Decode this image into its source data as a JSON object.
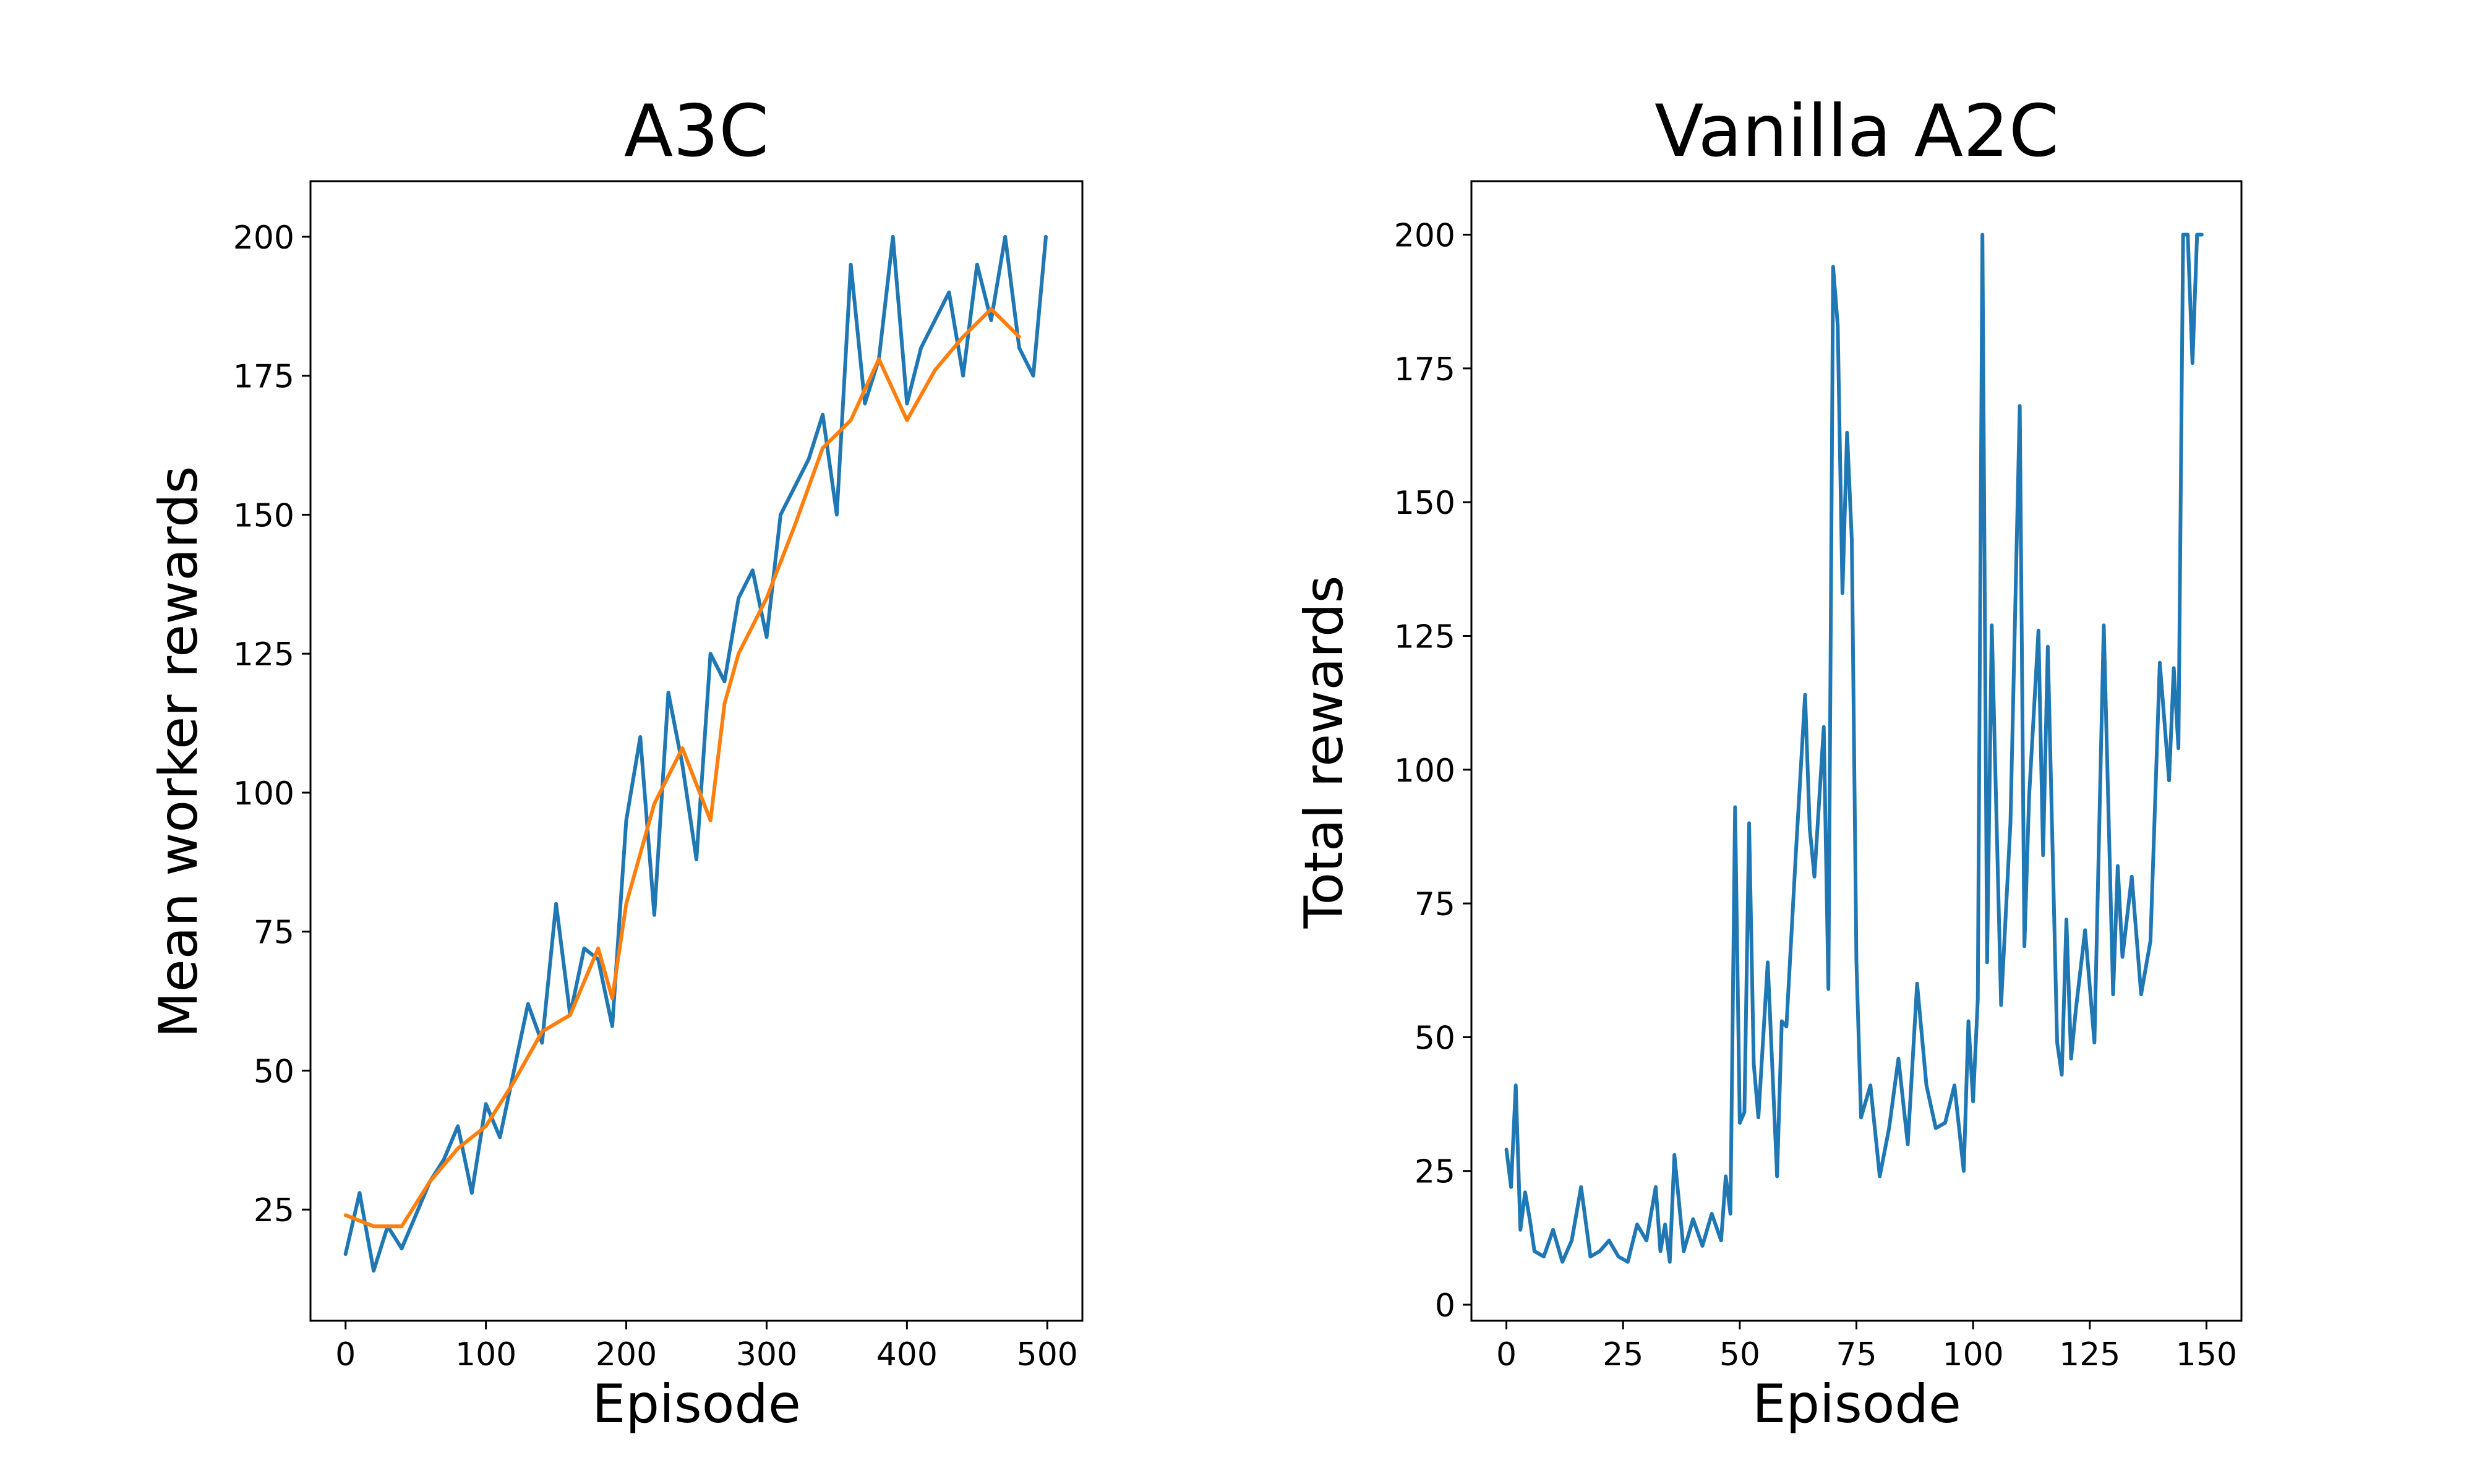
{
  "chart_data": [
    {
      "type": "line",
      "title": "A3C",
      "xlabel": "Episode",
      "ylabel": "Mean worker rewards",
      "xlim": [
        -25,
        525
      ],
      "ylim": [
        5,
        210
      ],
      "xticks": [
        0,
        100,
        200,
        300,
        400,
        500
      ],
      "yticks": [
        25,
        50,
        75,
        100,
        125,
        150,
        175,
        200
      ],
      "grid": false,
      "series": [
        {
          "name": "",
          "color": "#1f77b4",
          "x": [
            0,
            10,
            20,
            30,
            40,
            50,
            60,
            70,
            80,
            90,
            100,
            110,
            120,
            130,
            140,
            150,
            160,
            170,
            180,
            190,
            200,
            210,
            220,
            230,
            240,
            250,
            260,
            270,
            280,
            290,
            300,
            310,
            320,
            330,
            340,
            350,
            360,
            370,
            380,
            390,
            400,
            410,
            420,
            430,
            440,
            450,
            460,
            470,
            480,
            490,
            499
          ],
          "y": [
            17,
            28,
            14,
            22,
            18,
            24,
            30,
            34,
            40,
            28,
            44,
            38,
            50,
            62,
            55,
            80,
            60,
            72,
            70,
            58,
            95,
            110,
            78,
            118,
            105,
            88,
            125,
            120,
            135,
            140,
            128,
            150,
            155,
            160,
            168,
            150,
            195,
            170,
            178,
            200,
            170,
            180,
            185,
            190,
            175,
            195,
            185,
            200,
            180,
            175,
            200
          ],
          "note_extremes": [
            200,
            92
          ]
        },
        {
          "name": "",
          "color": "#ff7f0e",
          "x": [
            0,
            20,
            40,
            60,
            80,
            100,
            120,
            140,
            160,
            180,
            190,
            200,
            220,
            240,
            260,
            270,
            280,
            300,
            320,
            340,
            360,
            380,
            400,
            420,
            440,
            460,
            480
          ],
          "y": [
            24,
            22,
            22,
            30,
            36,
            40,
            48,
            57,
            60,
            72,
            63,
            80,
            98,
            108,
            95,
            116,
            125,
            135,
            148,
            162,
            167,
            178,
            167,
            176,
            182,
            187,
            182
          ]
        }
      ]
    },
    {
      "type": "line",
      "title": "Vanilla A2C",
      "xlabel": "Episode",
      "ylabel": "Total rewards",
      "xlim": [
        -7.5,
        157.5
      ],
      "ylim": [
        -3,
        210
      ],
      "xticks": [
        0,
        25,
        50,
        75,
        100,
        125,
        150
      ],
      "yticks": [
        0,
        25,
        50,
        75,
        100,
        125,
        150,
        175,
        200
      ],
      "grid": false,
      "series": [
        {
          "name": "",
          "color": "#1f77b4",
          "x": [
            0,
            1,
            2,
            3,
            4,
            5,
            6,
            8,
            10,
            12,
            14,
            16,
            18,
            20,
            22,
            24,
            26,
            28,
            30,
            32,
            33,
            34,
            35,
            36,
            38,
            40,
            42,
            44,
            46,
            47,
            48,
            49,
            50,
            51,
            52,
            53,
            54,
            56,
            58,
            59,
            60,
            62,
            64,
            65,
            66,
            68,
            69,
            70,
            71,
            72,
            73,
            74,
            75,
            76,
            78,
            80,
            82,
            84,
            86,
            88,
            90,
            92,
            94,
            96,
            98,
            99,
            100,
            101,
            102,
            103,
            104,
            106,
            108,
            110,
            111,
            112,
            114,
            115,
            116,
            118,
            119,
            120,
            121,
            122,
            124,
            126,
            128,
            130,
            131,
            132,
            134,
            136,
            138,
            140,
            142,
            143,
            144,
            145,
            146,
            147,
            148,
            149
          ],
          "y": [
            29,
            22,
            41,
            14,
            21,
            16,
            10,
            9,
            14,
            8,
            12,
            22,
            9,
            10,
            12,
            9,
            8,
            15,
            12,
            22,
            10,
            15,
            8,
            28,
            10,
            16,
            11,
            17,
            12,
            24,
            17,
            93,
            34,
            36,
            90,
            45,
            35,
            64,
            24,
            53,
            52,
            84,
            114,
            89,
            80,
            108,
            59,
            194,
            183,
            133,
            163,
            143,
            64,
            35,
            41,
            24,
            33,
            46,
            30,
            60,
            41,
            33,
            34,
            41,
            25,
            53,
            38,
            57,
            200,
            64,
            127,
            56,
            90,
            168,
            67,
            95,
            126,
            84,
            123,
            49,
            43,
            72,
            46,
            55,
            70,
            49,
            127,
            58,
            82,
            65,
            80,
            58,
            68,
            120,
            98,
            119,
            104,
            200,
            200,
            176,
            200,
            200
          ]
        }
      ]
    }
  ]
}
